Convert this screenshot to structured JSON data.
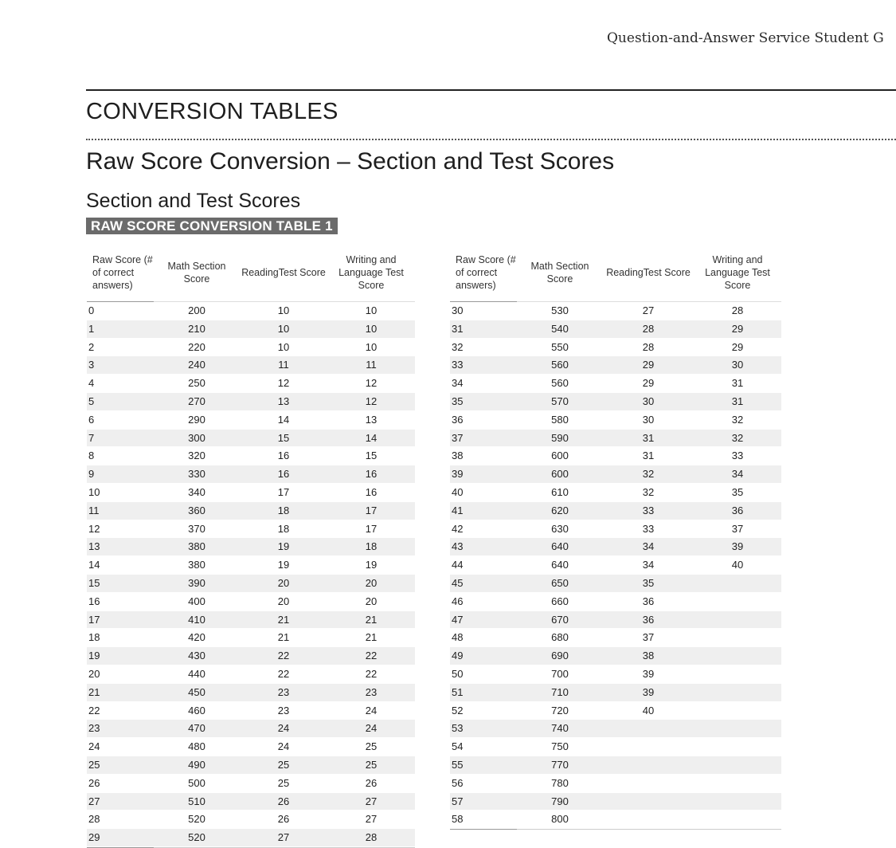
{
  "running_header": "Question-and-Answer Service Student G",
  "section_title": "CONVERSION TABLES",
  "page_heading": "Raw Score Conversion – Section and Test Scores",
  "sub_heading": "Section and Test Scores",
  "table_label": "RAW SCORE CONVERSION TABLE 1",
  "columns": {
    "raw": "Raw Score (# of correct answers)",
    "math": "Math Section Score",
    "reading": "ReadingTest Score",
    "writing": "Writing and Language Test Score"
  },
  "left_rows": [
    [
      "0",
      "200",
      "10",
      "10"
    ],
    [
      "1",
      "210",
      "10",
      "10"
    ],
    [
      "2",
      "220",
      "10",
      "10"
    ],
    [
      "3",
      "240",
      "11",
      "11"
    ],
    [
      "4",
      "250",
      "12",
      "12"
    ],
    [
      "5",
      "270",
      "13",
      "12"
    ],
    [
      "6",
      "290",
      "14",
      "13"
    ],
    [
      "7",
      "300",
      "15",
      "14"
    ],
    [
      "8",
      "320",
      "16",
      "15"
    ],
    [
      "9",
      "330",
      "16",
      "16"
    ],
    [
      "10",
      "340",
      "17",
      "16"
    ],
    [
      "11",
      "360",
      "18",
      "17"
    ],
    [
      "12",
      "370",
      "18",
      "17"
    ],
    [
      "13",
      "380",
      "19",
      "18"
    ],
    [
      "14",
      "380",
      "19",
      "19"
    ],
    [
      "15",
      "390",
      "20",
      "20"
    ],
    [
      "16",
      "400",
      "20",
      "20"
    ],
    [
      "17",
      "410",
      "21",
      "21"
    ],
    [
      "18",
      "420",
      "21",
      "21"
    ],
    [
      "19",
      "430",
      "22",
      "22"
    ],
    [
      "20",
      "440",
      "22",
      "22"
    ],
    [
      "21",
      "450",
      "23",
      "23"
    ],
    [
      "22",
      "460",
      "23",
      "24"
    ],
    [
      "23",
      "470",
      "24",
      "24"
    ],
    [
      "24",
      "480",
      "24",
      "25"
    ],
    [
      "25",
      "490",
      "25",
      "25"
    ],
    [
      "26",
      "500",
      "25",
      "26"
    ],
    [
      "27",
      "510",
      "26",
      "27"
    ],
    [
      "28",
      "520",
      "26",
      "27"
    ],
    [
      "29",
      "520",
      "27",
      "28"
    ]
  ],
  "right_rows": [
    [
      "30",
      "530",
      "27",
      "28"
    ],
    [
      "31",
      "540",
      "28",
      "29"
    ],
    [
      "32",
      "550",
      "28",
      "29"
    ],
    [
      "33",
      "560",
      "29",
      "30"
    ],
    [
      "34",
      "560",
      "29",
      "31"
    ],
    [
      "35",
      "570",
      "30",
      "31"
    ],
    [
      "36",
      "580",
      "30",
      "32"
    ],
    [
      "37",
      "590",
      "31",
      "32"
    ],
    [
      "38",
      "600",
      "31",
      "33"
    ],
    [
      "39",
      "600",
      "32",
      "34"
    ],
    [
      "40",
      "610",
      "32",
      "35"
    ],
    [
      "41",
      "620",
      "33",
      "36"
    ],
    [
      "42",
      "630",
      "33",
      "37"
    ],
    [
      "43",
      "640",
      "34",
      "39"
    ],
    [
      "44",
      "640",
      "34",
      "40"
    ],
    [
      "45",
      "650",
      "35",
      ""
    ],
    [
      "46",
      "660",
      "36",
      ""
    ],
    [
      "47",
      "670",
      "36",
      ""
    ],
    [
      "48",
      "680",
      "37",
      ""
    ],
    [
      "49",
      "690",
      "38",
      ""
    ],
    [
      "50",
      "700",
      "39",
      ""
    ],
    [
      "51",
      "710",
      "39",
      ""
    ],
    [
      "52",
      "720",
      "40",
      ""
    ],
    [
      "53",
      "740",
      "",
      ""
    ],
    [
      "54",
      "750",
      "",
      ""
    ],
    [
      "55",
      "770",
      "",
      ""
    ],
    [
      "56",
      "780",
      "",
      ""
    ],
    [
      "57",
      "790",
      "",
      ""
    ],
    [
      "58",
      "800",
      "",
      ""
    ]
  ]
}
